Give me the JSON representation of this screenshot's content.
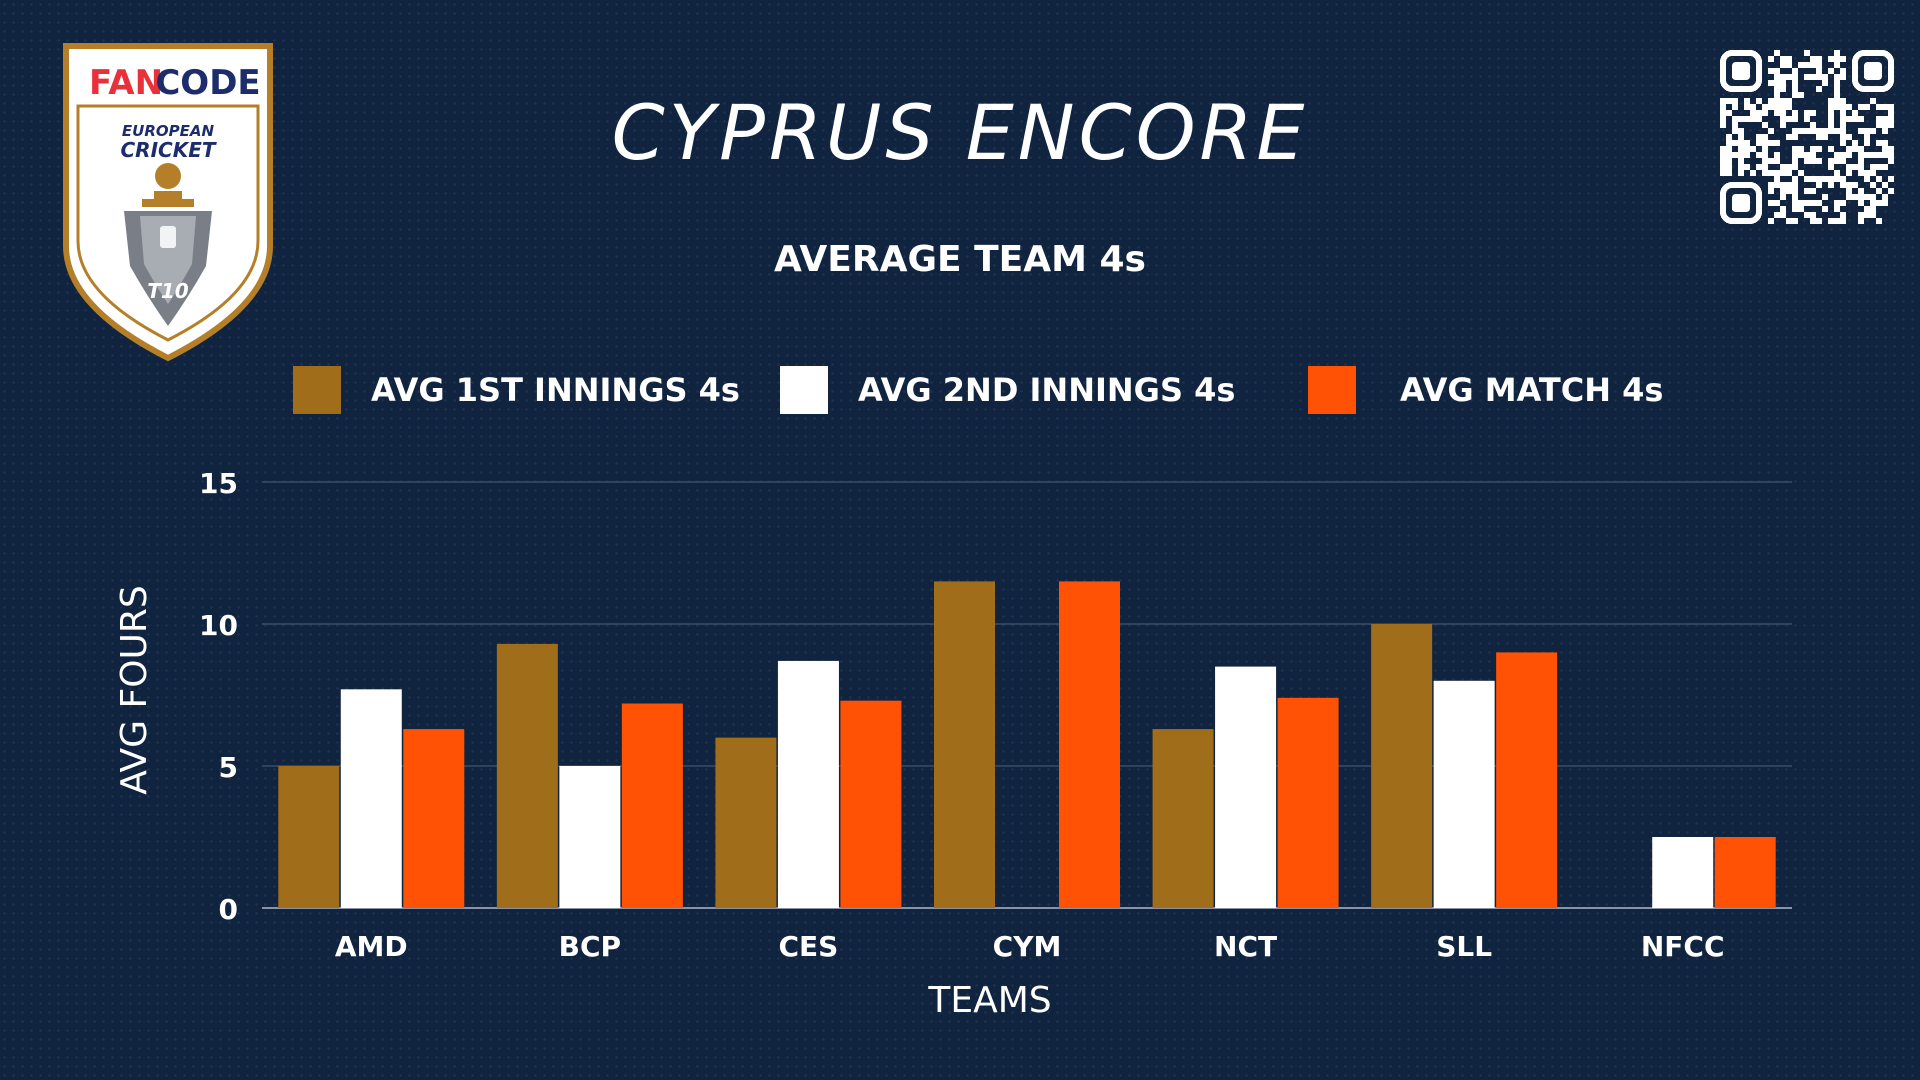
{
  "header": {
    "title": "CYPRUS ENCORE",
    "subtitle": "AVERAGE TEAM 4s"
  },
  "logo": {
    "brand_fan": "FAN",
    "brand_code": "CODE",
    "line1": "EUROPEAN",
    "line2": "CRICKET",
    "badge": "T10",
    "colors": {
      "red": "#e8313a",
      "navy": "#1c2c6c",
      "gold": "#b47f28"
    }
  },
  "qr": {
    "icon": "qr-code-icon"
  },
  "chart_data": {
    "type": "bar",
    "categories": [
      "AMD",
      "BCP",
      "CES",
      "CYM",
      "NCT",
      "SLL",
      "NFCC"
    ],
    "series": [
      {
        "name": "AVG 1ST INNINGS 4s",
        "color": "#a06d1b",
        "values": [
          5,
          9.3,
          6,
          11.5,
          6.3,
          10,
          0
        ]
      },
      {
        "name": "AVG 2ND INNINGS 4s",
        "color": "#ffffff",
        "values": [
          7.7,
          5,
          8.7,
          0,
          8.5,
          8,
          2.5
        ]
      },
      {
        "name": "AVG MATCH 4s",
        "color": "#ff5204",
        "values": [
          6.3,
          7.2,
          7.3,
          11.5,
          7.4,
          9,
          2.5
        ]
      }
    ],
    "xlabel": "TEAMS",
    "ylabel": "AVG FOURS",
    "ylim": [
      0,
      15
    ],
    "yticks": [
      0,
      5,
      10,
      15
    ],
    "grid": true,
    "legend_position": "top"
  }
}
